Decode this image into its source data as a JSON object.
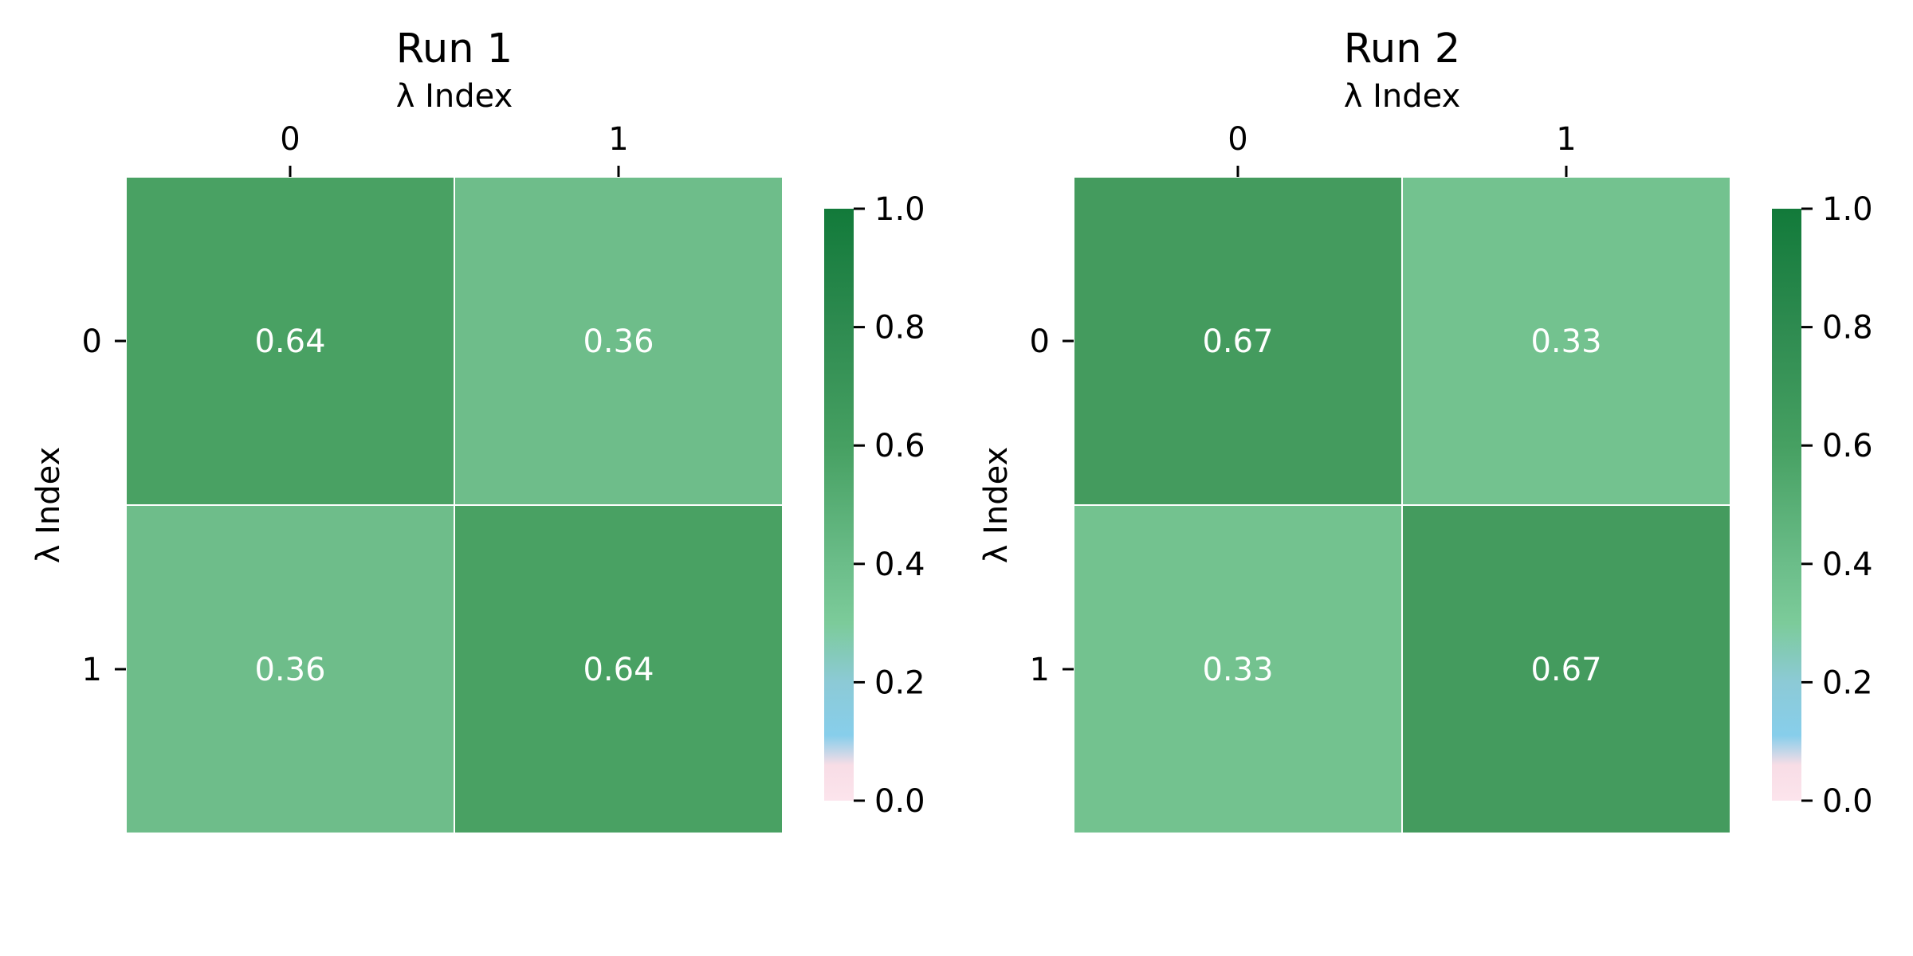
{
  "chart_data": [
    {
      "type": "heatmap",
      "title": "Run 1",
      "xlabel": "λ Index",
      "ylabel": "λ Index",
      "x_categories": [
        "0",
        "1"
      ],
      "y_categories": [
        "0",
        "1"
      ],
      "values": [
        [
          0.64,
          0.36
        ],
        [
          0.36,
          0.64
        ]
      ],
      "annotations": [
        [
          "0.64",
          "0.36"
        ],
        [
          "0.36",
          "0.64"
        ]
      ],
      "x_axis_position": "top",
      "colorbar": {
        "range": [
          0.0,
          1.0
        ],
        "ticks": [
          0.0,
          0.2,
          0.4,
          0.6,
          0.8,
          1.0
        ],
        "tick_labels": [
          "0.0",
          "0.2",
          "0.4",
          "0.6",
          "0.8",
          "1.0"
        ]
      }
    },
    {
      "type": "heatmap",
      "title": "Run 2",
      "xlabel": "λ Index",
      "ylabel": "λ Index",
      "x_categories": [
        "0",
        "1"
      ],
      "y_categories": [
        "0",
        "1"
      ],
      "values": [
        [
          0.67,
          0.33
        ],
        [
          0.33,
          0.67
        ]
      ],
      "annotations": [
        [
          "0.67",
          "0.33"
        ],
        [
          "0.33",
          "0.67"
        ]
      ],
      "x_axis_position": "top",
      "colorbar": {
        "range": [
          0.0,
          1.0
        ],
        "ticks": [
          0.0,
          0.2,
          0.4,
          0.6,
          0.8,
          1.0
        ],
        "tick_labels": [
          "0.0",
          "0.2",
          "0.4",
          "0.6",
          "0.8",
          "1.0"
        ]
      }
    }
  ],
  "colormap": {
    "stops": [
      {
        "value": 0.0,
        "color": "#fce4ec"
      },
      {
        "value": 0.06,
        "color": "#f8dde6"
      },
      {
        "value": 0.11,
        "color": "#87ceeb"
      },
      {
        "value": 0.2,
        "color": "#8ccad6"
      },
      {
        "value": 0.3,
        "color": "#7ccb9a"
      },
      {
        "value": 0.4,
        "color": "#6bbd89"
      },
      {
        "value": 0.6,
        "color": "#46a062"
      },
      {
        "value": 0.8,
        "color": "#2e8b50"
      },
      {
        "value": 1.0,
        "color": "#127a3a"
      }
    ],
    "cell_colors": {
      "0.33": "#73c28f",
      "0.36": "#6ebd8a",
      "0.64": "#49a163",
      "0.67": "#449b5e"
    },
    "grid_color": "#ffffff",
    "cell_text_color": "#ffffff"
  }
}
